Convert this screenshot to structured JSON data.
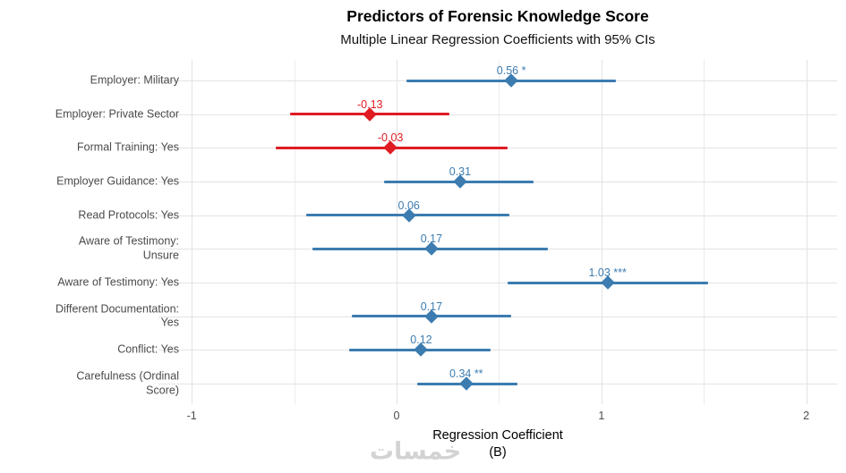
{
  "chart_data": {
    "type": "scatter",
    "subtype": "forest-plot-horizontal-errorbars",
    "title": "Predictors of Forensic Knowledge Score",
    "subtitle": "Multiple Linear Regression Coefficients with 95% CIs",
    "xlabel_line1": "Regression Coefficient",
    "xlabel_line2": "(B)",
    "xlim": [
      -1.16,
      2.15
    ],
    "x_major_ticks": [
      "-1",
      "0",
      "1",
      "2"
    ],
    "x_major_tick_values": [
      -1,
      0,
      1,
      2
    ],
    "x_minor_tick_values": [
      -0.5,
      0.5,
      1.5
    ],
    "grid": "on",
    "legend_position": "none",
    "rows": [
      {
        "label_lines": [
          "Employer: Military"
        ],
        "estimate": 0.56,
        "ci_low": 0.05,
        "ci_high": 1.07,
        "display": "0.56 *",
        "significance": "*",
        "color": "blue"
      },
      {
        "label_lines": [
          "Employer: Private Sector"
        ],
        "estimate": -0.13,
        "ci_low": -0.52,
        "ci_high": 0.26,
        "display": "-0.13",
        "significance": "",
        "color": "red"
      },
      {
        "label_lines": [
          "Formal Training: Yes"
        ],
        "estimate": -0.03,
        "ci_low": -0.59,
        "ci_high": 0.54,
        "display": "-0.03",
        "significance": "",
        "color": "red"
      },
      {
        "label_lines": [
          "Employer Guidance: Yes"
        ],
        "estimate": 0.31,
        "ci_low": -0.06,
        "ci_high": 0.67,
        "display": "0.31",
        "significance": "",
        "color": "blue"
      },
      {
        "label_lines": [
          "Read Protocols: Yes"
        ],
        "estimate": 0.06,
        "ci_low": -0.44,
        "ci_high": 0.55,
        "display": "0.06",
        "significance": "",
        "color": "blue"
      },
      {
        "label_lines": [
          "Aware of Testimony:",
          "Unsure"
        ],
        "estimate": 0.17,
        "ci_low": -0.41,
        "ci_high": 0.74,
        "display": "0.17",
        "significance": "",
        "color": "blue"
      },
      {
        "label_lines": [
          "Aware of Testimony: Yes"
        ],
        "estimate": 1.03,
        "ci_low": 0.54,
        "ci_high": 1.52,
        "display": "1.03 ***",
        "significance": "***",
        "color": "blue"
      },
      {
        "label_lines": [
          "Different Documentation:",
          "Yes"
        ],
        "estimate": 0.17,
        "ci_low": -0.22,
        "ci_high": 0.56,
        "display": "0.17",
        "significance": "",
        "color": "blue"
      },
      {
        "label_lines": [
          "Conflict: Yes"
        ],
        "estimate": 0.12,
        "ci_low": -0.23,
        "ci_high": 0.46,
        "display": "0.12",
        "significance": "",
        "color": "blue"
      },
      {
        "label_lines": [
          "Carefulness (Ordinal",
          "Score)"
        ],
        "estimate": 0.34,
        "ci_low": 0.1,
        "ci_high": 0.59,
        "display": "0.34 **",
        "significance": "**",
        "color": "blue"
      }
    ],
    "colors": {
      "blue": "#3C7CB0",
      "red": "#E01C23",
      "grid_major": "#E3E3E3",
      "grid_minor": "#ECECEC",
      "axis_text": "#4D4D4D",
      "background": "#FFFFFF"
    }
  },
  "watermark": {
    "text": "خمسات"
  }
}
